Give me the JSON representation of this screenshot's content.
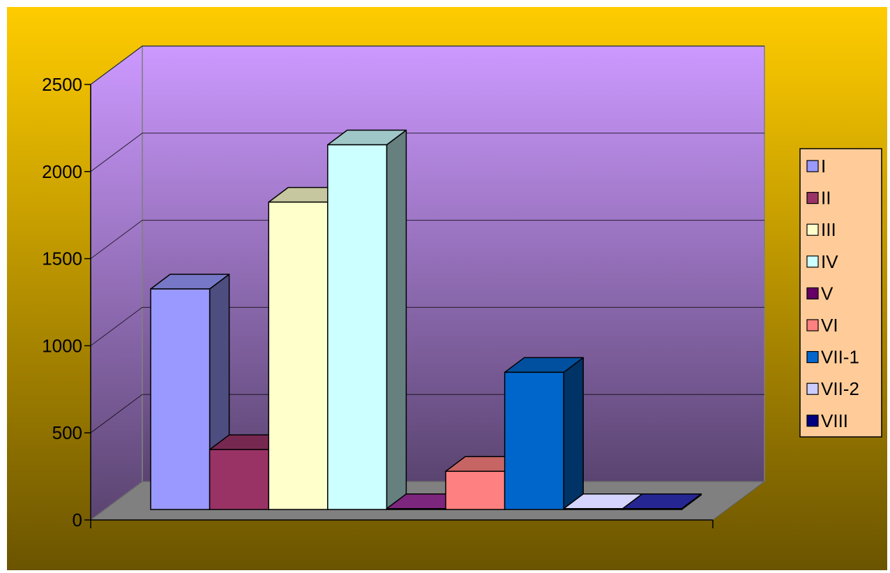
{
  "chart_data": {
    "type": "bar",
    "style": "3d-clustered",
    "title": "",
    "xlabel": "",
    "ylabel": "",
    "ylim": [
      0,
      2500
    ],
    "yticks": [
      0,
      500,
      1000,
      1500,
      2000,
      2500
    ],
    "grid": true,
    "legend_position": "right",
    "series": [
      {
        "name": "I",
        "value": 1270,
        "color": "#9999ff"
      },
      {
        "name": "II",
        "value": 345,
        "color": "#993366"
      },
      {
        "name": "III",
        "value": 1770,
        "color": "#ffffcc"
      },
      {
        "name": "IV",
        "value": 2100,
        "color": "#ccffff"
      },
      {
        "name": "V",
        "value": 5,
        "color": "#660066"
      },
      {
        "name": "VI",
        "value": 220,
        "color": "#ff8080"
      },
      {
        "name": "VII-1",
        "value": 790,
        "color": "#0066cc"
      },
      {
        "name": "VII-2",
        "value": 5,
        "color": "#ccccff"
      },
      {
        "name": "VIII",
        "value": 5,
        "color": "#000080"
      }
    ],
    "background_colors": {
      "outer_top": "#ffcc00",
      "outer_bottom": "#6b5400",
      "wall_top": "#cc99ff",
      "wall_bottom": "#5a4470",
      "floor": "#808080",
      "legend_bg": "#ffcc99"
    }
  }
}
